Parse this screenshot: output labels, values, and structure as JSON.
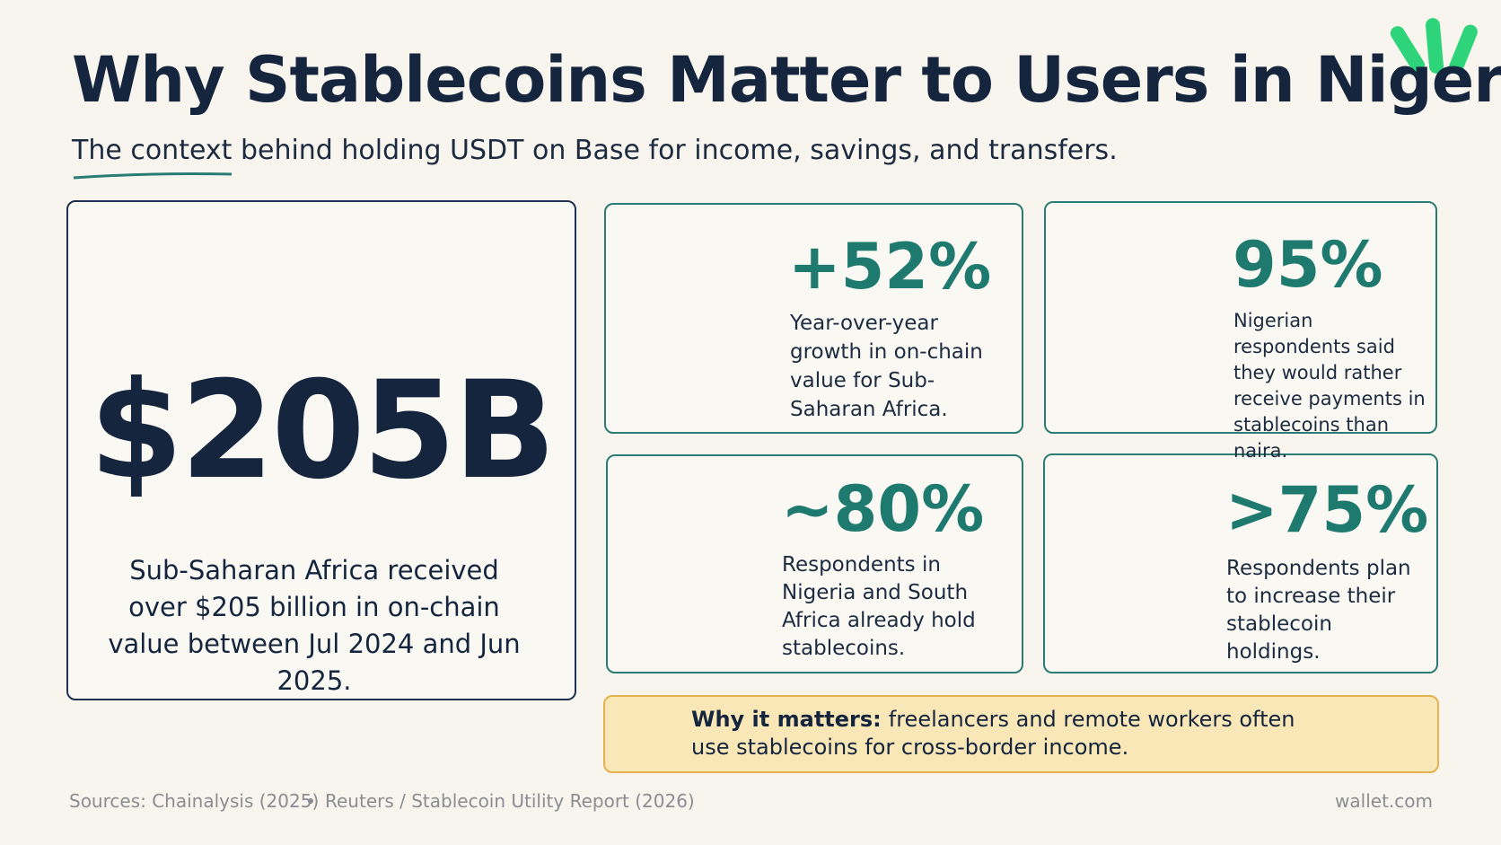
{
  "header": {
    "title": "Why Stablecoins Matter to Users in Nigeria",
    "subtitle": "The context behind holding USDT on Base for income, savings, and transfers."
  },
  "main_stat": {
    "value": "$205B",
    "description": "Sub-Saharan Africa received over $205 billion in on-chain value between Jul 2024 and Jun 2025."
  },
  "stats": [
    {
      "value": "+52%",
      "description": "Year-over-year growth in on-chain value for Sub-Saharan Africa."
    },
    {
      "value": "95%",
      "description": "Nigerian respondents said they would rather receive payments in stablecoins than naira."
    },
    {
      "value": "~80%",
      "description": "Respondents in Nigeria and South Africa already hold stablecoins."
    },
    {
      "value": ">75%",
      "description": "Respondents plan to increase their stablecoin holdings."
    }
  ],
  "callout": {
    "label": "Why it matters:",
    "text": "freelancers and remote workers often use stablecoins for cross-border income."
  },
  "footer": {
    "sources": [
      "Sources: Chainalysis (2025)",
      "Reuters / Stablecoin Utility Report (2026)"
    ],
    "brand": "wallet.com"
  }
}
